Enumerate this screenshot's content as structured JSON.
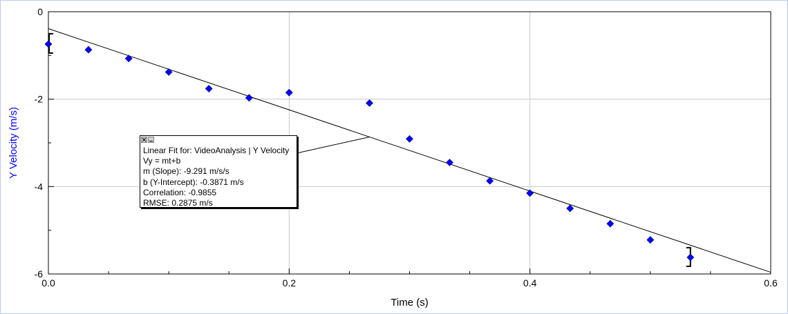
{
  "chart_data": {
    "type": "scatter",
    "title": "",
    "xlabel": "Time (s)",
    "ylabel": "Y Velocity (m/s)",
    "xlim": [
      0.0,
      0.6
    ],
    "ylim": [
      -6,
      0
    ],
    "x_ticks": [
      "0.0",
      "0.2",
      "0.4",
      "0.6"
    ],
    "y_ticks": [
      "0",
      "-2",
      "-4",
      "-6"
    ],
    "grid": true,
    "legend": "none",
    "series": [
      {
        "marker": "diamond",
        "color": "#0000ff",
        "points": [
          {
            "x": 0.0,
            "y": -0.74
          },
          {
            "x": 0.0333,
            "y": -0.87
          },
          {
            "x": 0.0667,
            "y": -1.07
          },
          {
            "x": 0.1,
            "y": -1.38
          },
          {
            "x": 0.1333,
            "y": -1.76
          },
          {
            "x": 0.1667,
            "y": -1.97
          },
          {
            "x": 0.2,
            "y": -1.85
          },
          {
            "x": 0.2667,
            "y": -2.09
          },
          {
            "x": 0.3,
            "y": -2.91
          },
          {
            "x": 0.3333,
            "y": -3.45
          },
          {
            "x": 0.3667,
            "y": -3.87
          },
          {
            "x": 0.4,
            "y": -4.15
          },
          {
            "x": 0.4333,
            "y": -4.5
          },
          {
            "x": 0.4667,
            "y": -4.85
          },
          {
            "x": 0.5,
            "y": -5.22
          },
          {
            "x": 0.5333,
            "y": -5.62
          }
        ]
      }
    ],
    "fit": {
      "type": "linear",
      "slope": -9.291,
      "intercept": -0.3871,
      "x_range": [
        0.0,
        0.6
      ],
      "color": "#000000",
      "bracket_start_x": 0.0,
      "bracket_end_x": 0.5333
    },
    "annotation": {
      "lines": [
        "Linear Fit for: VideoAnalysis | Y Velocity",
        "Vy = mt+b",
        "m (Slope): -9.291 m/s/s",
        "b (Y-Intercept): -0.3871 m/s",
        "Correlation: -0.9855",
        "RMSE: 0.2875 m/s"
      ],
      "pointer_x": 0.2667
    }
  },
  "colors": {
    "frame": "#b9c8ff",
    "grid": "#c8c8c8",
    "axis_title_y": "#0000ff",
    "points": "#0000ff"
  },
  "icons": {
    "close": "close-icon",
    "minimize": "minimize-icon"
  }
}
